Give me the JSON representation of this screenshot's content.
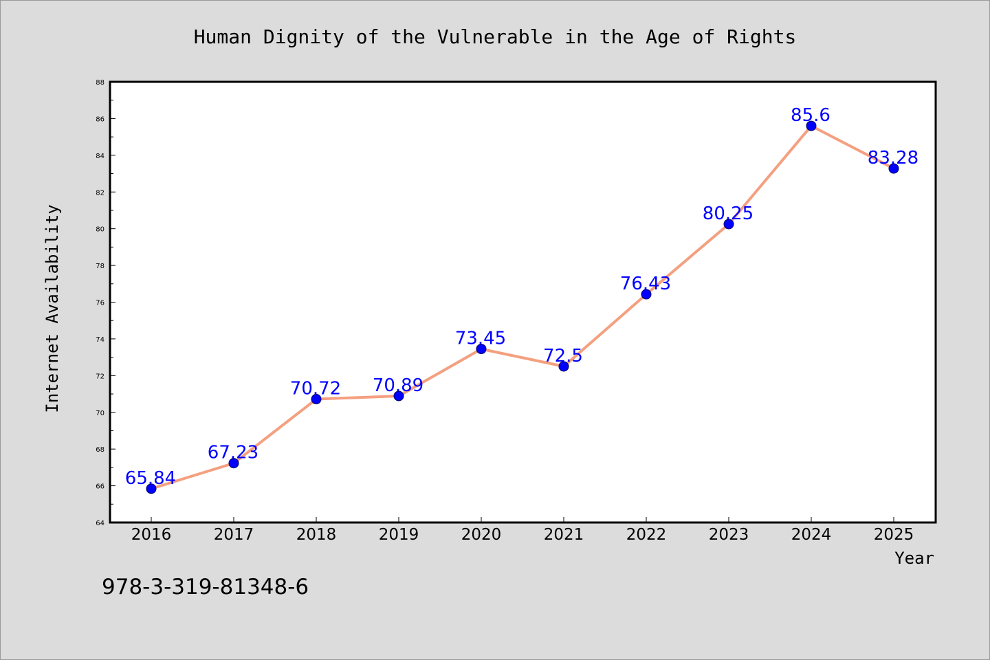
{
  "chart_data": {
    "type": "line",
    "title": "Human Dignity of the Vulnerable in the Age of Rights",
    "xlabel": "Year",
    "ylabel": "Internet Availability",
    "x": [
      "2016",
      "2017",
      "2018",
      "2019",
      "2020",
      "2021",
      "2022",
      "2023",
      "2024",
      "2025"
    ],
    "series": [
      {
        "values": [
          65.84,
          67.23,
          70.72,
          70.89,
          73.45,
          72.5,
          76.43,
          80.25,
          85.6,
          83.28
        ],
        "data_labels": [
          "65.84",
          "67.23",
          "70.72",
          "70.89",
          "73.45",
          "72.5",
          "76.43",
          "80.25",
          "85.6",
          "83.28"
        ],
        "line_color": "#f4a080",
        "marker_color": "#0000ff"
      }
    ],
    "ylim": [
      64,
      88
    ],
    "yticks": [
      64,
      66,
      68,
      70,
      72,
      74,
      76,
      78,
      80,
      82,
      84,
      86,
      88
    ],
    "grid": false,
    "legend": "none"
  },
  "footer": {
    "isbn": "978-3-319-81348-6"
  }
}
